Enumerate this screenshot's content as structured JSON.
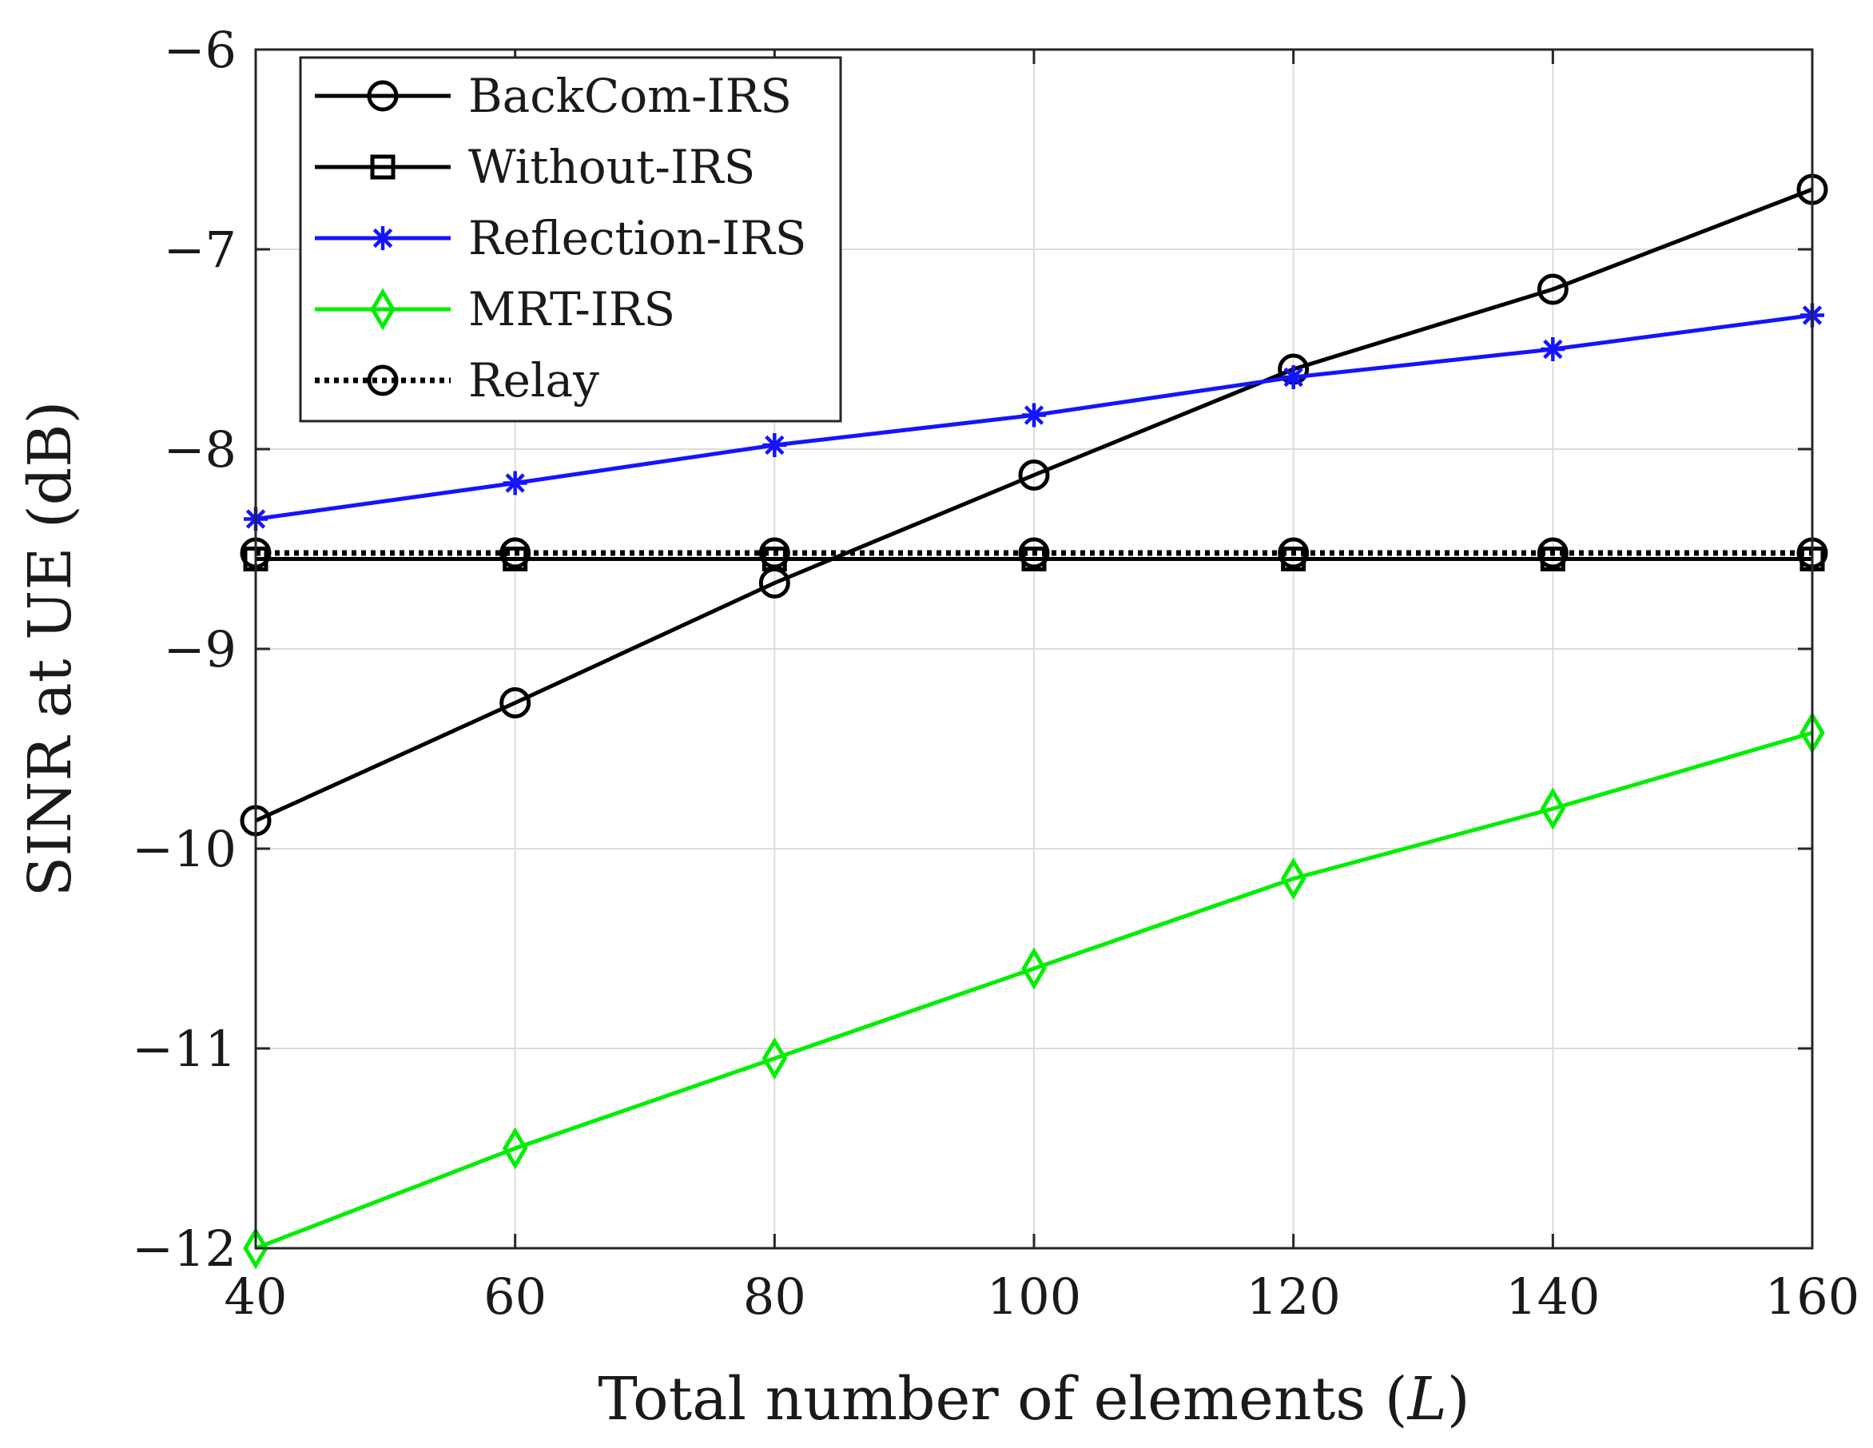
{
  "chart_data": {
    "type": "line",
    "title": "",
    "xlabel_prefix": "Total number of elements (",
    "xlabel_var": "L",
    "xlabel_suffix": ")",
    "ylabel": "SINR at UE (dB)",
    "x": [
      40,
      60,
      80,
      100,
      120,
      140,
      160
    ],
    "xlim": [
      40,
      160
    ],
    "ylim": [
      -12,
      -6
    ],
    "xticks": [
      40,
      60,
      80,
      100,
      120,
      140,
      160
    ],
    "xtick_labels": [
      "40",
      "60",
      "80",
      "100",
      "120",
      "140",
      "160"
    ],
    "yticks": [
      -6,
      -7,
      -8,
      -9,
      -10,
      -11,
      -12
    ],
    "ytick_labels": [
      "−6",
      "−7",
      "−8",
      "−9",
      "−10",
      "−11",
      "−12"
    ],
    "grid": true,
    "legend_position": "top-left",
    "series": [
      {
        "name": "BackCom-IRS",
        "color": "#000000",
        "marker": "circle",
        "line_style": "solid",
        "values": [
          -9.86,
          -9.27,
          -8.67,
          -8.13,
          -7.6,
          -7.2,
          -6.7
        ]
      },
      {
        "name": "Without-IRS",
        "color": "#000000",
        "marker": "square",
        "line_style": "solid",
        "values": [
          -8.55,
          -8.55,
          -8.55,
          -8.55,
          -8.55,
          -8.55,
          -8.55
        ]
      },
      {
        "name": "Reflection-IRS",
        "color": "#1414ff",
        "marker": "asterisk",
        "line_style": "solid",
        "values": [
          -8.35,
          -8.17,
          -7.98,
          -7.83,
          -7.64,
          -7.5,
          -7.33
        ]
      },
      {
        "name": "MRT-IRS",
        "color": "#00ee00",
        "marker": "diamond",
        "line_style": "solid",
        "values": [
          -12.0,
          -11.5,
          -11.05,
          -10.6,
          -10.15,
          -9.8,
          -9.42
        ]
      },
      {
        "name": "Relay",
        "color": "#000000",
        "marker": "circle",
        "line_style": "dotted",
        "values": [
          -8.52,
          -8.52,
          -8.52,
          -8.52,
          -8.52,
          -8.52,
          -8.52
        ]
      }
    ]
  }
}
